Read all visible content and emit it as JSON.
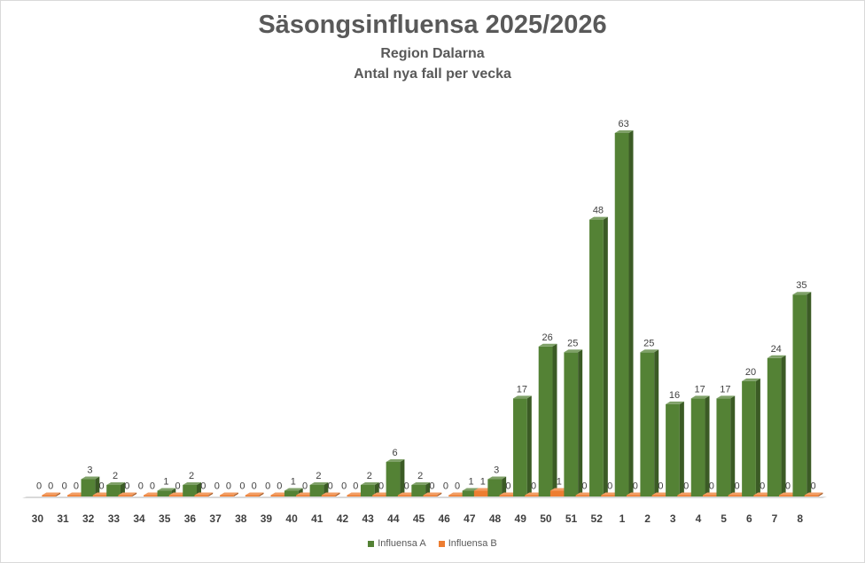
{
  "chart_data": {
    "type": "bar",
    "title": "Säsongsinfluensa 2025/2026",
    "subtitle": [
      "Region Dalarna",
      "Antal nya fall per vecka"
    ],
    "xlabel": "",
    "ylabel": "",
    "categories": [
      "30",
      "31",
      "32",
      "33",
      "34",
      "35",
      "36",
      "37",
      "38",
      "39",
      "40",
      "41",
      "42",
      "43",
      "44",
      "45",
      "46",
      "47",
      "48",
      "49",
      "50",
      "51",
      "52",
      "1",
      "2",
      "3",
      "4",
      "5",
      "6",
      "7",
      "8"
    ],
    "series": [
      {
        "name": "Influensa A",
        "color": "#548235",
        "values": [
          0,
          0,
          3,
          2,
          0,
          1,
          2,
          0,
          0,
          0,
          1,
          2,
          0,
          2,
          6,
          2,
          0,
          1,
          3,
          17,
          26,
          25,
          48,
          63,
          25,
          16,
          17,
          17,
          20,
          24,
          35
        ]
      },
      {
        "name": "Influensa B",
        "color": "#ed7d31",
        "values": [
          0,
          0,
          0,
          0,
          0,
          0,
          0,
          0,
          0,
          0,
          0,
          0,
          0,
          0,
          0,
          0,
          0,
          1,
          0,
          0,
          1,
          0,
          0,
          0,
          0,
          0,
          0,
          0,
          0,
          0,
          0
        ]
      }
    ],
    "ylim": [
      0,
      63
    ],
    "grid": false,
    "legend": "bottom"
  }
}
